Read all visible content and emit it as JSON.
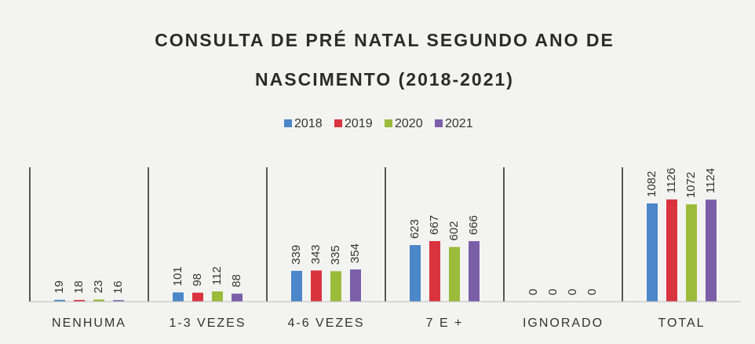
{
  "chart_data": {
    "type": "bar",
    "title": "CONSULTA DE PRÉ NATAL SEGUNDO ANO DE NASCIMENTO (2018-2021)",
    "categories": [
      "NENHUMA",
      "1-3 VEZES",
      "4-6 VEZES",
      "7 E +",
      "IGNORADO",
      "TOTAL"
    ],
    "series": [
      {
        "name": "2018",
        "color": "#4a86c8",
        "values": [
          19,
          101,
          339,
          623,
          0,
          1082
        ]
      },
      {
        "name": "2019",
        "color": "#d9333f",
        "values": [
          18,
          98,
          343,
          667,
          0,
          1126
        ]
      },
      {
        "name": "2020",
        "color": "#9bbb3b",
        "values": [
          23,
          112,
          335,
          602,
          0,
          1072
        ]
      },
      {
        "name": "2021",
        "color": "#7b5ea8",
        "values": [
          16,
          88,
          354,
          666,
          0,
          1124
        ]
      }
    ],
    "legend": "top"
  }
}
